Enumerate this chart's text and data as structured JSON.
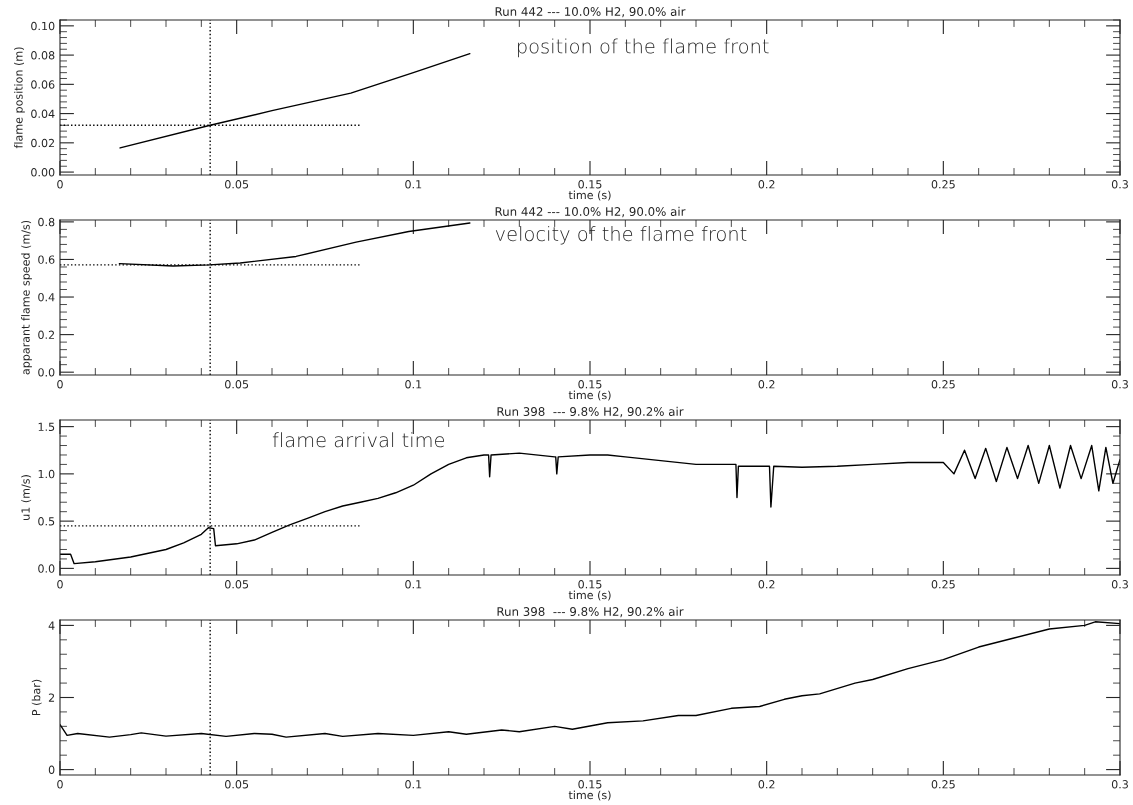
{
  "chart_data": [
    {
      "type": "line",
      "title": "Run 442 --- 10.0% H2, 90.0% air",
      "xlabel": "time (s)",
      "ylabel": "flame position (m)",
      "annotations": [
        "position of the flame front"
      ],
      "xlim": [
        0,
        0.3
      ],
      "xticks": [
        0,
        0.05,
        0.1,
        0.15,
        0.2,
        0.25,
        0.3
      ],
      "ylim": [
        -0.002,
        0.104
      ],
      "yticks": [
        {
          "value": 0,
          "label": "0.00"
        },
        {
          "value": 0.02,
          "label": "0.02"
        },
        {
          "value": 0.04,
          "label": "0.04"
        },
        {
          "value": 0.06,
          "label": "0.06"
        },
        {
          "value": 0.08,
          "label": "0.08"
        },
        {
          "value": 0.1,
          "label": "0.10"
        }
      ],
      "ref_lines": [
        {
          "axis": "x",
          "value": 0.0425,
          "line_style": "dotted",
          "color": "#000000"
        }
      ],
      "series": [
        {
          "color": "#000000",
          "line_style": "solid",
          "x": [
            0.017,
            0.0425,
            0.06,
            0.0823,
            0.1,
            0.116
          ],
          "values": [
            0.0165,
            0.032,
            0.042,
            0.054,
            0.068,
            0.081
          ]
        },
        {
          "color": "#000000",
          "line_style": "dotted",
          "x": [
            0,
            0.085
          ],
          "values": [
            0.032,
            0.032
          ]
        }
      ]
    },
    {
      "type": "line",
      "title": "Run 442 --- 10.0% H2, 90.0% air",
      "xlabel": "time (s)",
      "ylabel": "apparant flame speed (m/s)",
      "annotations": [
        "velocity of the flame front"
      ],
      "xlim": [
        0,
        0.3
      ],
      "xticks": [
        0,
        0.05,
        0.1,
        0.15,
        0.2,
        0.25,
        0.3
      ],
      "ylim": [
        -0.015,
        0.81
      ],
      "yticks": [
        {
          "value": 0,
          "label": "0.0"
        },
        {
          "value": 0.2,
          "label": "0.2"
        },
        {
          "value": 0.4,
          "label": "0.4"
        },
        {
          "value": 0.6,
          "label": "0.6"
        },
        {
          "value": 0.8,
          "label": "0.8"
        }
      ],
      "ref_lines": [
        {
          "axis": "x",
          "value": 0.0425,
          "line_style": "dotted",
          "color": "#000000"
        }
      ],
      "series": [
        {
          "color": "#000000",
          "line_style": "solid",
          "x": [
            0.0168,
            0.032,
            0.0423,
            0.051,
            0.0668,
            0.0838,
            0.0987,
            0.116
          ],
          "values": [
            0.578,
            0.565,
            0.571,
            0.581,
            0.616,
            0.692,
            0.749,
            0.794
          ]
        },
        {
          "color": "#000000",
          "line_style": "dotted",
          "x": [
            0,
            0.085
          ],
          "values": [
            0.571,
            0.571
          ]
        }
      ]
    },
    {
      "type": "line",
      "title": "Run 398  --- 9.8% H2, 90.2% air",
      "xlabel": "time (s)",
      "ylabel": "u1 (m/s)",
      "annotations": [
        "flame arrival time"
      ],
      "xlim": [
        0,
        0.3
      ],
      "xticks": [
        0,
        0.05,
        0.1,
        0.15,
        0.2,
        0.25,
        0.3
      ],
      "ylim": [
        -0.07,
        1.57
      ],
      "yticks": [
        {
          "value": 0,
          "label": "0.0"
        },
        {
          "value": 0.5,
          "label": "0.5"
        },
        {
          "value": 1,
          "label": "1.0"
        },
        {
          "value": 1.5,
          "label": "1.5"
        }
      ],
      "ref_lines": [
        {
          "axis": "x",
          "value": 0.0425,
          "line_style": "dotted",
          "color": "#000000"
        }
      ],
      "series": [
        {
          "color": "#000000",
          "line_style": "solid",
          "x": [
            0,
            0.003,
            0.004,
            0.01,
            0.02,
            0.03,
            0.035,
            0.04,
            0.042,
            0.0435,
            0.044,
            0.05,
            0.055,
            0.06,
            0.065,
            0.07,
            0.075,
            0.08,
            0.085,
            0.09,
            0.095,
            0.1,
            0.105,
            0.11,
            0.115,
            0.12,
            0.1213,
            0.1216,
            0.122,
            0.13,
            0.14,
            0.1403,
            0.1406,
            0.141,
            0.15,
            0.155,
            0.16,
            0.17,
            0.18,
            0.19,
            0.1913,
            0.1916,
            0.192,
            0.2,
            0.2008,
            0.2012,
            0.202,
            0.21,
            0.22,
            0.23,
            0.24,
            0.25,
            0.253,
            0.256,
            0.259,
            0.262,
            0.265,
            0.268,
            0.271,
            0.274,
            0.277,
            0.28,
            0.283,
            0.286,
            0.289,
            0.292,
            0.294,
            0.296,
            0.298,
            0.3
          ],
          "values": [
            0.15,
            0.15,
            0.05,
            0.07,
            0.12,
            0.2,
            0.27,
            0.36,
            0.43,
            0.42,
            0.24,
            0.26,
            0.3,
            0.38,
            0.46,
            0.53,
            0.6,
            0.66,
            0.7,
            0.74,
            0.8,
            0.88,
            1.0,
            1.1,
            1.17,
            1.2,
            1.2,
            0.97,
            1.2,
            1.22,
            1.18,
            1.18,
            1.0,
            1.18,
            1.2,
            1.2,
            1.18,
            1.14,
            1.1,
            1.1,
            1.1,
            0.75,
            1.08,
            1.08,
            1.08,
            0.65,
            1.08,
            1.07,
            1.08,
            1.1,
            1.12,
            1.12,
            1.0,
            1.25,
            0.95,
            1.27,
            0.92,
            1.28,
            0.95,
            1.3,
            0.9,
            1.3,
            0.85,
            1.3,
            0.95,
            1.3,
            0.82,
            1.28,
            0.9,
            1.15
          ]
        },
        {
          "color": "#000000",
          "line_style": "dotted",
          "x": [
            0,
            0.085
          ],
          "values": [
            0.45,
            0.45
          ]
        }
      ]
    },
    {
      "type": "line",
      "title": "Run 398  --- 9.8% H2, 90.2% air",
      "xlabel": "time (s)",
      "ylabel": "P (bar)",
      "xlim": [
        0,
        0.3
      ],
      "xticks": [
        0,
        0.05,
        0.1,
        0.15,
        0.2,
        0.25,
        0.3
      ],
      "ylim": [
        -0.15,
        4.15
      ],
      "yticks": [
        0,
        2,
        4
      ],
      "ref_lines": [
        {
          "axis": "x",
          "value": 0.0425,
          "line_style": "dotted",
          "color": "#000000"
        }
      ],
      "series": [
        {
          "color": "#000000",
          "line_style": "solid",
          "x": [
            0,
            0.002,
            0.005,
            0.014,
            0.02,
            0.023,
            0.03,
            0.04,
            0.047,
            0.055,
            0.06,
            0.064,
            0.075,
            0.08,
            0.09,
            0.1,
            0.11,
            0.115,
            0.125,
            0.13,
            0.14,
            0.145,
            0.155,
            0.165,
            0.175,
            0.18,
            0.19,
            0.198,
            0.205,
            0.21,
            0.215,
            0.225,
            0.23,
            0.24,
            0.25,
            0.26,
            0.27,
            0.28,
            0.29,
            0.293,
            0.3
          ],
          "values": [
            1.25,
            0.95,
            1.0,
            0.9,
            0.97,
            1.02,
            0.93,
            1.0,
            0.92,
            1.0,
            0.98,
            0.9,
            1.0,
            0.92,
            1.0,
            0.95,
            1.05,
            0.98,
            1.1,
            1.05,
            1.2,
            1.12,
            1.3,
            1.35,
            1.5,
            1.5,
            1.7,
            1.75,
            1.95,
            2.05,
            2.1,
            2.4,
            2.5,
            2.8,
            3.05,
            3.4,
            3.65,
            3.9,
            4.0,
            4.1,
            4.05
          ]
        }
      ]
    }
  ]
}
